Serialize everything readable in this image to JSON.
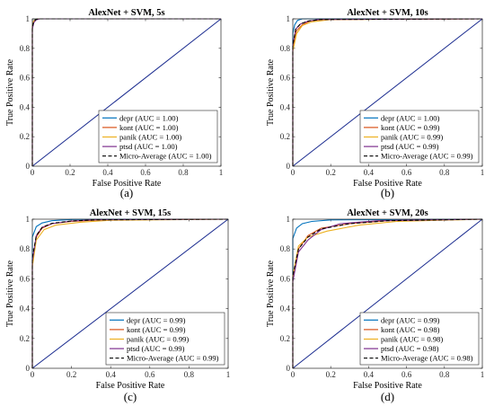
{
  "colors": {
    "depr": "#0072BD",
    "kont": "#D95319",
    "panik": "#EDB120",
    "ptsd": "#7E2F8E",
    "micro": "#000000",
    "diagonal": "#1a2b8f"
  },
  "chart_data": [
    {
      "type": "line",
      "panel_label": "(a)",
      "title": "AlexNet + SVM, 5s",
      "xlabel": "False Positive Rate",
      "ylabel": "True Positive Rate",
      "xlim": [
        0,
        1
      ],
      "ylim": [
        0,
        1
      ],
      "xticks": [
        "0",
        "0.2",
        "0.4",
        "0.6",
        "0.8",
        "1"
      ],
      "yticks": [
        "0",
        "0.2",
        "0.4",
        "0.6",
        "0.8",
        "1"
      ],
      "grid": false,
      "legend_position": "bottom-right",
      "series": [
        {
          "name": "depr (AUC = 1.00)",
          "key": "depr",
          "dashed": false,
          "x": [
            0,
            0,
            0.006,
            0.015,
            0.03,
            1
          ],
          "y": [
            0,
            0.95,
            0.985,
            0.997,
            1,
            1
          ]
        },
        {
          "name": "kont (AUC = 1.00)",
          "key": "kont",
          "dashed": false,
          "x": [
            0,
            0,
            0.007,
            0.018,
            0.035,
            1
          ],
          "y": [
            0,
            0.94,
            0.98,
            0.995,
            1,
            1
          ]
        },
        {
          "name": "panik (AUC = 1.00)",
          "key": "panik",
          "dashed": false,
          "x": [
            0,
            0,
            0.006,
            0.016,
            0.03,
            1
          ],
          "y": [
            0,
            0.95,
            0.985,
            0.996,
            1,
            1
          ]
        },
        {
          "name": "ptsd (AUC = 1.00)",
          "key": "ptsd",
          "dashed": false,
          "x": [
            0,
            0,
            0.008,
            0.02,
            0.04,
            1
          ],
          "y": [
            0,
            0.93,
            0.975,
            0.993,
            1,
            1
          ]
        },
        {
          "name": "Micro-Average (AUC = 1.00)",
          "key": "micro",
          "dashed": true,
          "x": [
            0,
            0,
            0.007,
            0.018,
            0.035,
            1
          ],
          "y": [
            0,
            0.94,
            0.98,
            0.995,
            1,
            1
          ]
        }
      ]
    },
    {
      "type": "line",
      "panel_label": "(b)",
      "title": "AlexNet + SVM, 10s",
      "xlabel": "False Positive Rate",
      "ylabel": "True Positive Rate",
      "xlim": [
        0,
        1
      ],
      "ylim": [
        0,
        1
      ],
      "xticks": [
        "0",
        "0.2",
        "0.4",
        "0.6",
        "0.8",
        "1"
      ],
      "yticks": [
        "0",
        "0.2",
        "0.4",
        "0.6",
        "0.8",
        "1"
      ],
      "grid": false,
      "legend_position": "bottom-right",
      "series": [
        {
          "name": "depr (AUC = 1.00)",
          "key": "depr",
          "dashed": false,
          "x": [
            0,
            0,
            0.01,
            0.025,
            0.05,
            1
          ],
          "y": [
            0,
            0.9,
            0.96,
            0.99,
            1,
            1
          ]
        },
        {
          "name": "kont (AUC = 0.99)",
          "key": "kont",
          "dashed": false,
          "x": [
            0,
            0,
            0.02,
            0.05,
            0.09,
            0.15,
            1
          ],
          "y": [
            0,
            0.8,
            0.92,
            0.96,
            0.985,
            0.995,
            1
          ]
        },
        {
          "name": "panik (AUC = 0.99)",
          "key": "panik",
          "dashed": false,
          "x": [
            0,
            0,
            0.02,
            0.05,
            0.1,
            0.2,
            1
          ],
          "y": [
            0,
            0.78,
            0.9,
            0.955,
            0.98,
            0.995,
            1
          ]
        },
        {
          "name": "ptsd (AUC = 0.99)",
          "key": "ptsd",
          "dashed": false,
          "x": [
            0,
            0,
            0.015,
            0.04,
            0.08,
            0.14,
            1
          ],
          "y": [
            0,
            0.82,
            0.93,
            0.965,
            0.985,
            0.996,
            1
          ]
        },
        {
          "name": "Micro-Average (AUC = 0.99)",
          "key": "micro",
          "dashed": true,
          "x": [
            0,
            0,
            0.015,
            0.04,
            0.08,
            0.15,
            1
          ],
          "y": [
            0,
            0.82,
            0.93,
            0.965,
            0.985,
            0.996,
            1
          ]
        }
      ]
    },
    {
      "type": "line",
      "panel_label": "(c)",
      "title": "AlexNet + SVM, 15s",
      "xlabel": "False Positive Rate",
      "ylabel": "True Positive Rate",
      "xlim": [
        0,
        1
      ],
      "ylim": [
        0,
        1
      ],
      "xticks": [
        "0",
        "0.2",
        "0.4",
        "0.6",
        "0.8",
        "1"
      ],
      "yticks": [
        "0",
        "0.2",
        "0.4",
        "0.6",
        "0.8",
        "1"
      ],
      "grid": false,
      "legend_position": "bottom-right",
      "series": [
        {
          "name": "depr (AUC = 0.99)",
          "key": "depr",
          "dashed": false,
          "x": [
            0,
            0,
            0.02,
            0.05,
            0.1,
            0.2,
            1
          ],
          "y": [
            0,
            0.88,
            0.95,
            0.975,
            0.99,
            0.998,
            1
          ]
        },
        {
          "name": "kont (AUC = 0.99)",
          "key": "kont",
          "dashed": false,
          "x": [
            0,
            0,
            0.02,
            0.05,
            0.1,
            0.2,
            0.35,
            1
          ],
          "y": [
            0,
            0.7,
            0.88,
            0.94,
            0.97,
            0.985,
            0.995,
            1
          ]
        },
        {
          "name": "panik (AUC = 0.99)",
          "key": "panik",
          "dashed": false,
          "x": [
            0,
            0,
            0.02,
            0.06,
            0.12,
            0.25,
            0.4,
            1
          ],
          "y": [
            0,
            0.68,
            0.86,
            0.93,
            0.96,
            0.98,
            0.993,
            1
          ]
        },
        {
          "name": "ptsd (AUC = 0.99)",
          "key": "ptsd",
          "dashed": false,
          "x": [
            0,
            0,
            0.02,
            0.05,
            0.1,
            0.2,
            0.32,
            1
          ],
          "y": [
            0,
            0.72,
            0.89,
            0.945,
            0.97,
            0.988,
            0.996,
            1
          ]
        },
        {
          "name": "Micro-Average (AUC = 0.99)",
          "key": "micro",
          "dashed": true,
          "x": [
            0,
            0,
            0.02,
            0.05,
            0.1,
            0.2,
            0.33,
            1
          ],
          "y": [
            0,
            0.74,
            0.89,
            0.945,
            0.972,
            0.988,
            0.996,
            1
          ]
        }
      ]
    },
    {
      "type": "line",
      "panel_label": "(d)",
      "title": "AlexNet + SVM, 20s",
      "xlabel": "False Positive Rate",
      "ylabel": "True Positive Rate",
      "xlim": [
        0,
        1
      ],
      "ylim": [
        0,
        1
      ],
      "xticks": [
        "0",
        "0.2",
        "0.4",
        "0.6",
        "0.8",
        "1"
      ],
      "yticks": [
        "0",
        "0.2",
        "0.4",
        "0.6",
        "0.8",
        "1"
      ],
      "grid": false,
      "legend_position": "bottom-right",
      "series": [
        {
          "name": "depr (AUC = 0.99)",
          "key": "depr",
          "dashed": false,
          "x": [
            0,
            0,
            0.02,
            0.05,
            0.1,
            0.2,
            1
          ],
          "y": [
            0,
            0.87,
            0.94,
            0.97,
            0.985,
            0.995,
            1
          ]
        },
        {
          "name": "kont (AUC = 0.98)",
          "key": "kont",
          "dashed": false,
          "x": [
            0,
            0,
            0.03,
            0.08,
            0.15,
            0.3,
            0.5,
            1
          ],
          "y": [
            0,
            0.6,
            0.8,
            0.89,
            0.94,
            0.97,
            0.99,
            1
          ]
        },
        {
          "name": "panik (AUC = 0.98)",
          "key": "panik",
          "dashed": false,
          "x": [
            0,
            0,
            0.03,
            0.08,
            0.18,
            0.35,
            0.55,
            1
          ],
          "y": [
            0,
            0.62,
            0.82,
            0.88,
            0.92,
            0.96,
            0.985,
            1
          ]
        },
        {
          "name": "ptsd (AUC = 0.98)",
          "key": "ptsd",
          "dashed": false,
          "x": [
            0,
            0,
            0.03,
            0.08,
            0.15,
            0.25,
            0.45,
            1
          ],
          "y": [
            0,
            0.58,
            0.78,
            0.86,
            0.93,
            0.97,
            0.99,
            1
          ]
        },
        {
          "name": "Micro-Average (AUC = 0.98)",
          "key": "micro",
          "dashed": true,
          "x": [
            0,
            0,
            0.03,
            0.08,
            0.15,
            0.3,
            0.5,
            1
          ],
          "y": [
            0,
            0.62,
            0.8,
            0.88,
            0.935,
            0.97,
            0.99,
            1
          ]
        }
      ]
    }
  ]
}
